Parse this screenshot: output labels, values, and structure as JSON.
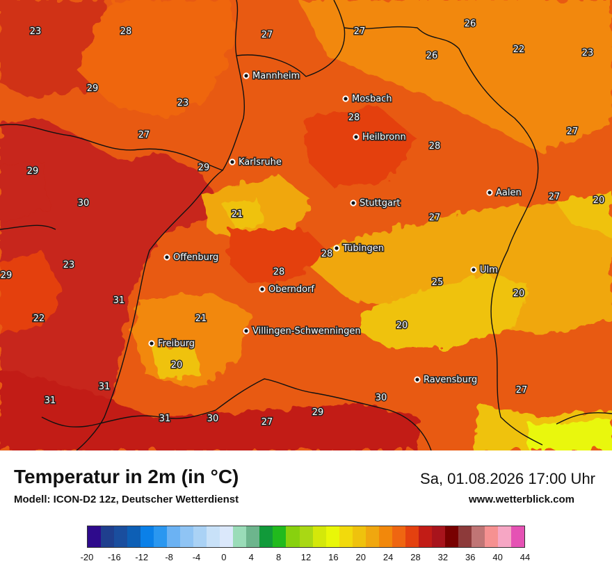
{
  "map": {
    "cities": [
      {
        "name": "Mannheim"
      },
      {
        "name": "Mosbach"
      },
      {
        "name": "Heilbronn"
      },
      {
        "name": "Karlsruhe"
      },
      {
        "name": "Stuttgart"
      },
      {
        "name": "Aalen"
      },
      {
        "name": "Tübingen"
      },
      {
        "name": "Offenburg"
      },
      {
        "name": "Ulm"
      },
      {
        "name": "Oberndorf"
      },
      {
        "name": "Villingen-Schwenningen"
      },
      {
        "name": "Freiburg"
      },
      {
        "name": "Ravensburg"
      }
    ],
    "temperatures": [
      "23",
      "28",
      "27",
      "27",
      "26",
      "22",
      "23",
      "26",
      "29",
      "23",
      "28",
      "27",
      "28",
      "27",
      "29",
      "29",
      "30",
      "21",
      "27",
      "27",
      "20",
      "23",
      "28",
      "22",
      "28",
      "29",
      "25",
      "20",
      "31",
      "22",
      "21",
      "20",
      "20",
      "31",
      "27",
      "31",
      "30",
      "31",
      "30",
      "27",
      "29"
    ]
  },
  "footer": {
    "title": "Temperatur in 2m (in °C)",
    "model": "Modell: ICON-D2 12z, Deutscher Wetterdienst",
    "datetime": "Sa, 01.08.2026 17:00 Uhr",
    "site": "www.wetterblick.com"
  },
  "legend": {
    "colors": [
      "#2e0a8c",
      "#1f3f8e",
      "#1a4e9e",
      "#0d5fb5",
      "#0a80e8",
      "#2a97f0",
      "#6bb2f3",
      "#8fc4f4",
      "#aad2f5",
      "#c8e1f8",
      "#dbe8fb",
      "#9adcb8",
      "#6db58d",
      "#119a3a",
      "#21ba1d",
      "#88d10e",
      "#a9d814",
      "#d4e80a",
      "#e9f708",
      "#f2da0c",
      "#efc20d",
      "#f0a70f",
      "#f2880b",
      "#ef6611",
      "#e4410f",
      "#c21c16",
      "#a8141c",
      "#780000",
      "#8d3a3a",
      "#c07575",
      "#f69191",
      "#f6a6c4",
      "#e552b4"
    ],
    "ticks": [
      "-20",
      "-16",
      "-12",
      "-8",
      "-4",
      "0",
      "4",
      "8",
      "12",
      "16",
      "20",
      "24",
      "28",
      "32",
      "36",
      "40",
      "44"
    ]
  }
}
